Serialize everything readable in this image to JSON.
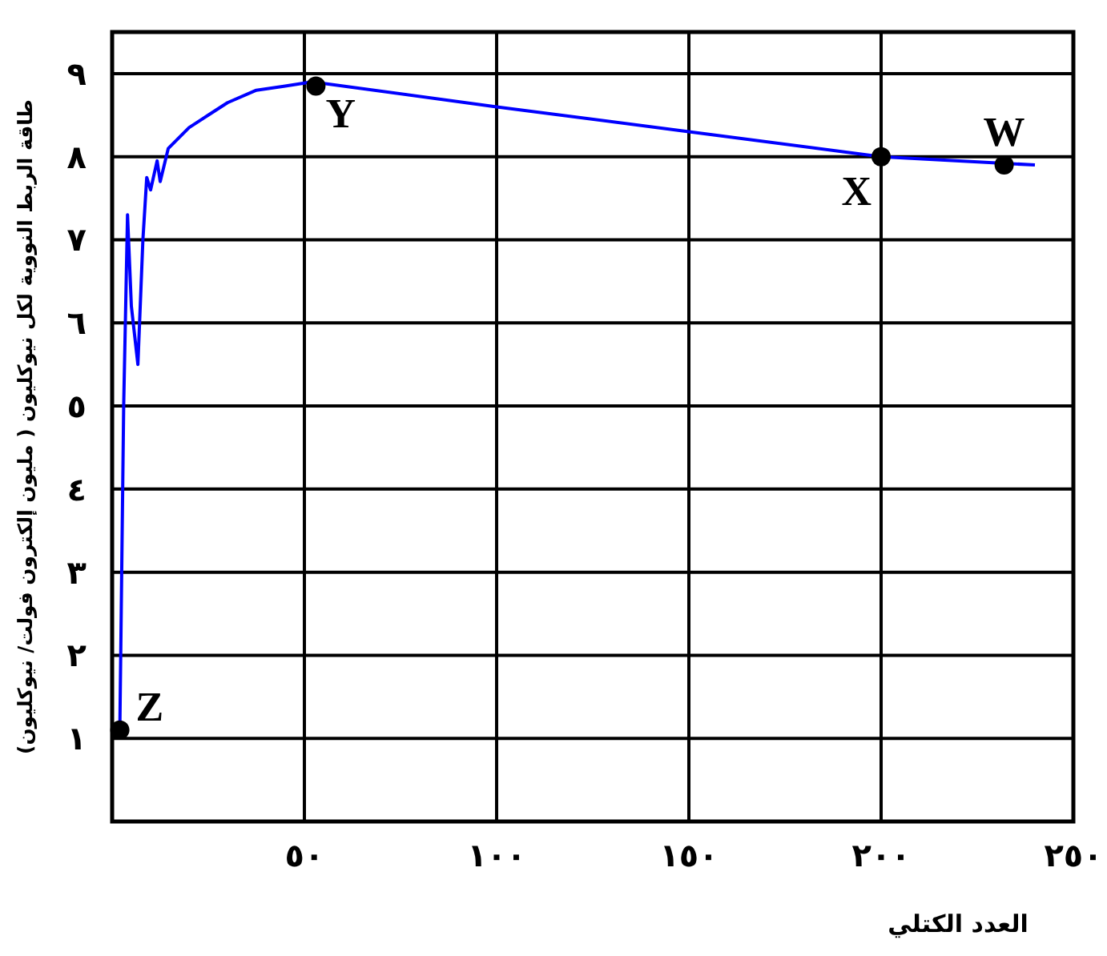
{
  "chart_data": {
    "type": "line",
    "xlabel": "العدد الكتلي",
    "ylabel": "طاقة الربط النووية لكل نيوكليون ( مليون إلكترون فولت/ نيوكليون)",
    "xlim": [
      0,
      250
    ],
    "ylim": [
      0,
      9.5
    ],
    "xticks": [
      {
        "value": 50,
        "label": "٥٠"
      },
      {
        "value": 100,
        "label": "١٠٠"
      },
      {
        "value": 150,
        "label": "١٥٠"
      },
      {
        "value": 200,
        "label": "٢٠٠"
      },
      {
        "value": 250,
        "label": "٢٥٠"
      }
    ],
    "yticks": [
      {
        "value": 1,
        "label": "١"
      },
      {
        "value": 2,
        "label": "٢"
      },
      {
        "value": 3,
        "label": "٣"
      },
      {
        "value": 4,
        "label": "٤"
      },
      {
        "value": 5,
        "label": "٥"
      },
      {
        "value": 6,
        "label": "٦"
      },
      {
        "value": 7,
        "label": "٧"
      },
      {
        "value": 8,
        "label": "٨"
      },
      {
        "value": 9,
        "label": "٩"
      }
    ],
    "grid": true,
    "series": [
      {
        "type": "line",
        "color": "#0000ff",
        "x": [
          2,
          3,
          4,
          5,
          6.7,
          8,
          9,
          10,
          11.7,
          12.5,
          14.6,
          20,
          25,
          30,
          37.5,
          45,
          52,
          100,
          150,
          200,
          240
        ],
        "values": [
          1.1,
          5.0,
          7.3,
          6.2,
          5.5,
          7.0,
          7.75,
          7.6,
          7.95,
          7.7,
          8.1,
          8.35,
          8.5,
          8.65,
          8.8,
          8.85,
          8.9,
          8.6,
          8.3,
          8.0,
          7.9
        ]
      },
      {
        "type": "scatter",
        "color": "#000000",
        "marker": "circle",
        "x": [
          2,
          53,
          200,
          232
        ],
        "values": [
          1.1,
          8.85,
          8.0,
          7.9
        ]
      }
    ],
    "annotations": [
      {
        "text": "Z",
        "x": 2,
        "y": 1.1
      },
      {
        "text": "Y",
        "x": 53,
        "y": 8.85
      },
      {
        "text": "X",
        "x": 200,
        "y": 8.0
      },
      {
        "text": "W",
        "x": 232,
        "y": 7.9
      }
    ]
  }
}
